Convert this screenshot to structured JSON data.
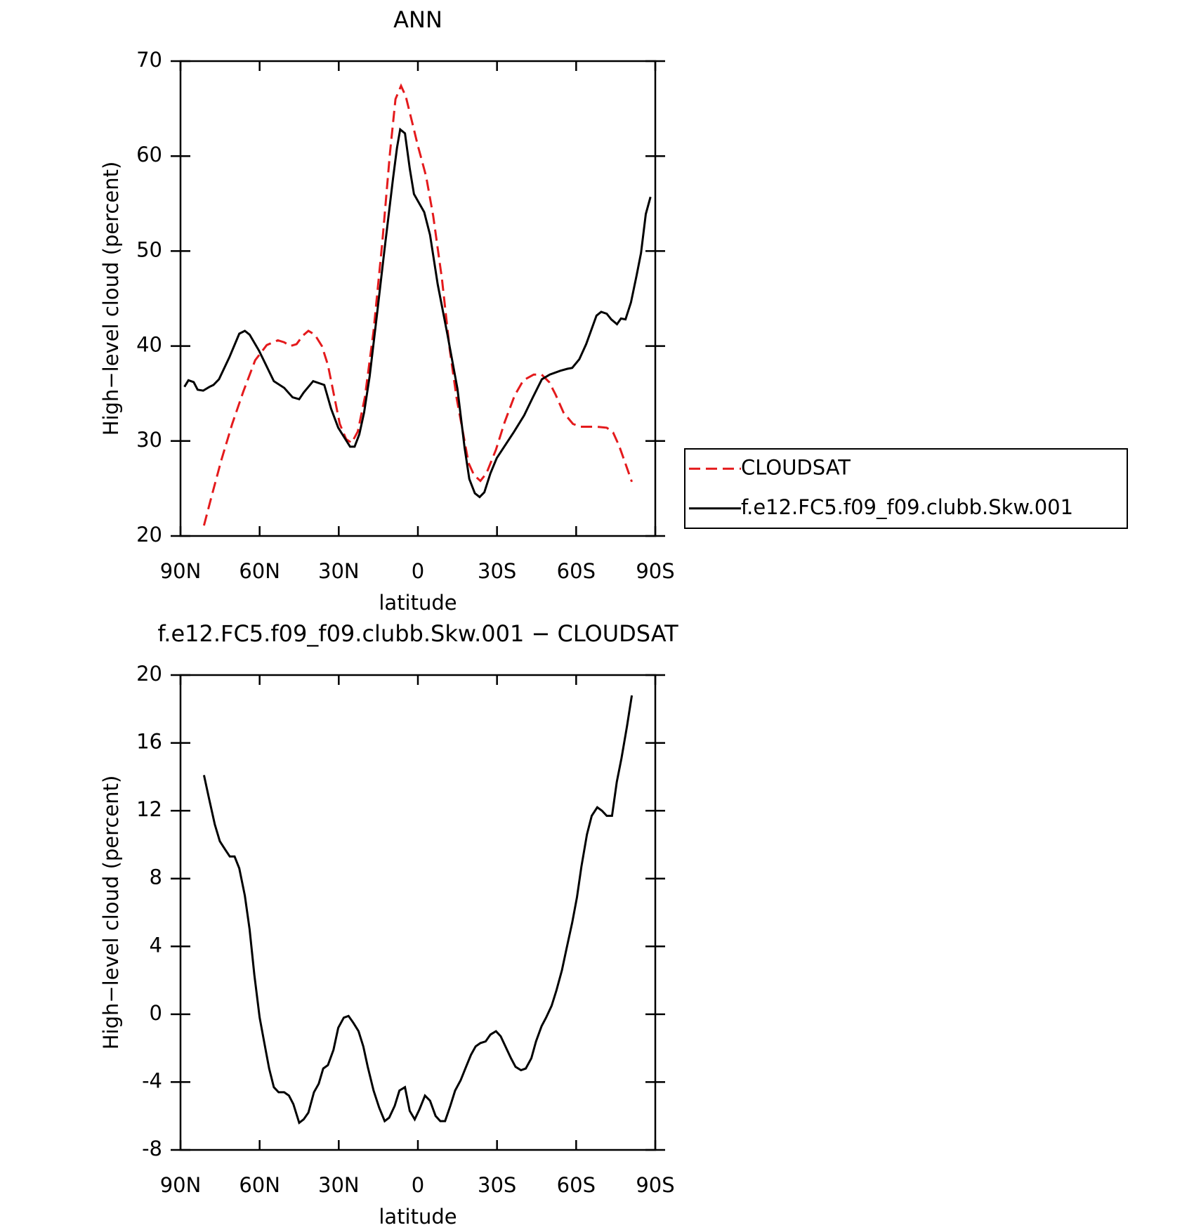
{
  "chart_data": [
    {
      "type": "line",
      "title": "ANN",
      "xlabel": "latitude",
      "ylabel": "High−level cloud (percent)",
      "xlim": [
        90,
        -90
      ],
      "xticks": [
        {
          "value": 90,
          "label": "90N"
        },
        {
          "value": 60,
          "label": "60N"
        },
        {
          "value": 30,
          "label": "30N"
        },
        0,
        {
          "value": -30,
          "label": "30S"
        },
        {
          "value": -60,
          "label": "60S"
        },
        {
          "value": -90,
          "label": "90S"
        }
      ],
      "ylim": [
        20,
        70
      ],
      "yticks": [
        20,
        30,
        40,
        50,
        60,
        70
      ],
      "legend": "right",
      "series": [
        {
          "name": "CLOUDSAT",
          "color": "#e41a1c",
          "linestyle": "dashed",
          "x": [
            81.1,
            78.1,
            74.5,
            70.4,
            66.2,
            61.7,
            57.3,
            53.1,
            50.7,
            48.4,
            46,
            43.6,
            41.5,
            39.1,
            36.4,
            34.1,
            32,
            29.6,
            27.2,
            25.1,
            22.8,
            20.1,
            16.8,
            13.5,
            10.6,
            8.5,
            6.4,
            4.6,
            2.2,
            0.1,
            -3.1,
            -5.8,
            -9.1,
            -12.1,
            -14.7,
            -17.1,
            -19.2,
            -21.3,
            -23.7,
            -26,
            -29.6,
            -32.9,
            -36.7,
            -40,
            -43.9,
            -46.9,
            -49.8,
            -52.2,
            -55.2,
            -58.8,
            -61.7,
            -67.7,
            -71.6,
            -74,
            -76.3,
            -78.7,
            -81.1
          ],
          "values": [
            21.1,
            24.3,
            28.0,
            31.8,
            35.2,
            38.5,
            40.1,
            40.6,
            40.4,
            40.0,
            40.2,
            41.1,
            41.6,
            41.2,
            40.0,
            38.0,
            35.1,
            31.8,
            30.2,
            29.8,
            31.0,
            34.6,
            41.6,
            50.9,
            60.3,
            66.0,
            67.4,
            66.3,
            63.6,
            61.2,
            57.9,
            53.7,
            47.1,
            39.6,
            34.5,
            30.9,
            27.7,
            26.4,
            25.8,
            26.6,
            29.1,
            32.0,
            34.8,
            36.4,
            37.0,
            37.0,
            36.2,
            34.9,
            33.0,
            31.8,
            31.5,
            31.5,
            31.4,
            30.9,
            29.5,
            27.6,
            25.7
          ]
        },
        {
          "name": "f.e12.FC5.f09_f09.clubb.Skw.001",
          "color": "#000000",
          "linestyle": "solid",
          "x": [
            88.5,
            87,
            85,
            83.5,
            81.4,
            79,
            77.5,
            75.4,
            71.5,
            67.7,
            65.6,
            63.8,
            60.2,
            54.6,
            50.7,
            47.5,
            45,
            43.3,
            39.7,
            35.5,
            32.9,
            30.2,
            25.7,
            24,
            22.2,
            20.4,
            18.3,
            15.6,
            12.6,
            9.4,
            7.9,
            6.7,
            4.9,
            3.1,
            1.5,
            -2.4,
            -4.6,
            -7.5,
            -11.2,
            -15,
            -17.7,
            -19.5,
            -21.6,
            -23.4,
            -25.2,
            -27.5,
            -29.9,
            -36.5,
            -40.3,
            -43.6,
            -47,
            -50,
            -54,
            -56.7,
            -58.5,
            -61.2,
            -63.8,
            -67.7,
            -69.5,
            -71.6,
            -73.3,
            -75.5,
            -77,
            -78.7,
            -80.8,
            -82.9,
            -84.6,
            -86.4,
            -88.2
          ],
          "values": [
            35.7,
            36.4,
            36.2,
            35.4,
            35.3,
            35.7,
            35.9,
            36.5,
            38.8,
            41.3,
            41.6,
            41.2,
            39.5,
            36.3,
            35.6,
            34.6,
            34.4,
            35.1,
            36.3,
            35.9,
            33.4,
            31.4,
            29.4,
            29.4,
            30.7,
            33.0,
            36.8,
            43.1,
            50.3,
            57.7,
            60.9,
            62.8,
            62.4,
            58.7,
            56.0,
            54.1,
            51.7,
            46.5,
            41.2,
            35.5,
            29.3,
            26.0,
            24.5,
            24.1,
            24.6,
            26.6,
            28.2,
            31.0,
            32.7,
            34.6,
            36.5,
            37.0,
            37.4,
            37.6,
            37.7,
            38.6,
            40.2,
            43.2,
            43.6,
            43.4,
            42.8,
            42.3,
            42.9,
            42.8,
            44.6,
            47.4,
            49.8,
            53.9,
            55.7
          ]
        }
      ]
    },
    {
      "type": "line",
      "title": "f.e12.FC5.f09_f09.clubb.Skw.001 − CLOUDSAT",
      "xlabel": "latitude",
      "ylabel": "High−level cloud (percent)",
      "xlim": [
        90,
        -90
      ],
      "xticks": [
        {
          "value": 90,
          "label": "90N"
        },
        {
          "value": 60,
          "label": "60N"
        },
        {
          "value": 30,
          "label": "30N"
        },
        0,
        {
          "value": -30,
          "label": "30S"
        },
        {
          "value": -60,
          "label": "60S"
        },
        {
          "value": -90,
          "label": "90S"
        }
      ],
      "ylim": [
        -8,
        20
      ],
      "yticks": [
        -8,
        -4,
        0,
        4,
        8,
        12,
        16,
        20
      ],
      "series": [
        {
          "color": "#000000",
          "linestyle": "solid",
          "x": [
            81.1,
            79.3,
            77,
            75.1,
            73,
            71.3,
            69.5,
            67.7,
            65.6,
            63.8,
            62,
            60,
            58.2,
            56.4,
            54.6,
            52.8,
            50.7,
            48.9,
            47.2,
            45,
            43.3,
            41.5,
            39.4,
            37.6,
            35.9,
            34.1,
            32,
            30.2,
            28.1,
            26.3,
            24.5,
            22.5,
            20.7,
            19,
            16.8,
            14.7,
            12.6,
            10.9,
            8.8,
            7,
            4.9,
            3.1,
            1.2,
            -0.6,
            -2.7,
            -4.6,
            -6.7,
            -8.5,
            -10.3,
            -12.3,
            -14.1,
            -16.2,
            -18,
            -20.1,
            -21.9,
            -23.7,
            -25.7,
            -27.5,
            -29.6,
            -31.4,
            -33.5,
            -35.3,
            -37,
            -39.1,
            -40.9,
            -43,
            -44.8,
            -46.9,
            -48.6,
            -50.7,
            -52.5,
            -54.6,
            -56.4,
            -58.5,
            -60.3,
            -62,
            -64.1,
            -65.9,
            -68,
            -69.8,
            -71.6,
            -73.6,
            -75.4,
            -77.2,
            -79.3,
            -81.1
          ],
          "values": [
            14.1,
            12.8,
            11.2,
            10.2,
            9.7,
            9.3,
            9.3,
            8.6,
            7.0,
            5.0,
            2.3,
            -0.2,
            -1.7,
            -3.2,
            -4.3,
            -4.6,
            -4.6,
            -4.8,
            -5.3,
            -6.4,
            -6.2,
            -5.8,
            -4.6,
            -4.1,
            -3.2,
            -3.0,
            -2.1,
            -0.8,
            -0.2,
            -0.1,
            -0.5,
            -1.0,
            -1.9,
            -3.1,
            -4.5,
            -5.5,
            -6.3,
            -6.1,
            -5.4,
            -4.5,
            -4.3,
            -5.7,
            -6.2,
            -5.6,
            -4.8,
            -5.1,
            -6.0,
            -6.3,
            -6.3,
            -5.4,
            -4.5,
            -3.9,
            -3.2,
            -2.4,
            -1.9,
            -1.7,
            -1.6,
            -1.2,
            -1.0,
            -1.3,
            -2.0,
            -2.6,
            -3.1,
            -3.3,
            -3.2,
            -2.6,
            -1.6,
            -0.7,
            -0.2,
            0.5,
            1.4,
            2.6,
            3.9,
            5.4,
            6.9,
            8.7,
            10.6,
            11.7,
            12.2,
            12.0,
            11.7,
            11.7,
            13.7,
            15.1,
            17.0,
            18.8
          ]
        }
      ]
    }
  ]
}
